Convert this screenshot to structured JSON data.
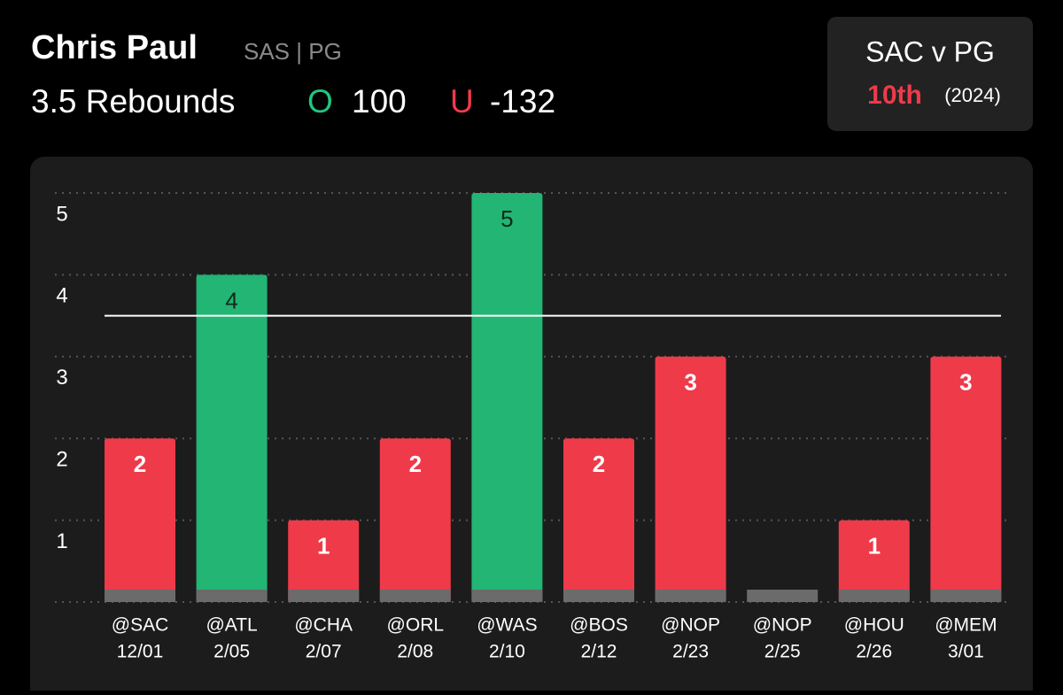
{
  "player": {
    "name": "Chris Paul",
    "team_position": "SAS | PG"
  },
  "prop": {
    "stat": "Rebounds",
    "over_symbol": "O",
    "over_odds": "100",
    "under_symbol": "U",
    "under_odds": "-132"
  },
  "badge": {
    "matchup": "SAC v PG",
    "rank": "10th",
    "season": "(2024)"
  },
  "chart_data": {
    "type": "bar",
    "categories": [
      "@SAC",
      "@ATL",
      "@CHA",
      "@ORL",
      "@WAS",
      "@BOS",
      "@NOP",
      "@NOP",
      "@HOU",
      "@MEM"
    ],
    "dates": [
      "12/01",
      "2/05",
      "2/07",
      "2/08",
      "2/10",
      "2/12",
      "2/23",
      "2/25",
      "2/26",
      "3/01"
    ],
    "values": [
      2,
      4,
      1,
      2,
      5,
      2,
      3,
      0,
      1,
      3
    ],
    "threshold": 3.5,
    "over_color": "#22b573",
    "under_color": "#ef3a4a",
    "ylim": [
      0,
      5
    ],
    "yticks": [
      1,
      2,
      3,
      4,
      5
    ],
    "grid": true
  }
}
